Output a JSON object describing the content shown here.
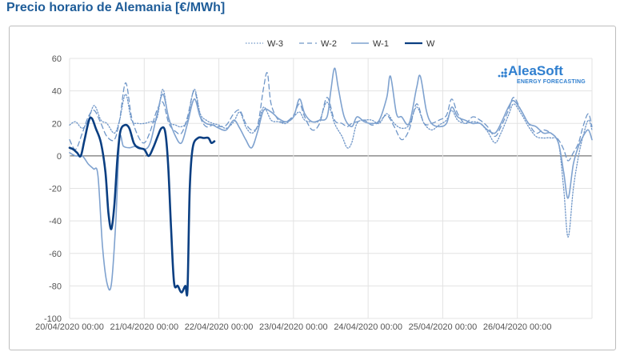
{
  "title": "Precio horario de Alemania [€/MWh]",
  "logo": {
    "brand": "AleaSoft",
    "tagline": "ENERGY FORECASTING",
    "color": "#2f7fcf"
  },
  "chart_data": {
    "type": "line",
    "ylim": [
      -100,
      60
    ],
    "yticks": [
      -100,
      -80,
      -60,
      -40,
      -20,
      0,
      20,
      40,
      60
    ],
    "xlim": [
      0,
      7
    ],
    "xticks": [
      {
        "x": 0,
        "label": "20/04/2020 00:00"
      },
      {
        "x": 1,
        "label": "21/04/2020 00:00"
      },
      {
        "x": 2,
        "label": "22/04/2020 00:00"
      },
      {
        "x": 3,
        "label": "23/04/2020 00:00"
      },
      {
        "x": 4,
        "label": "24/04/2020 00:00"
      },
      {
        "x": 5,
        "label": "25/04/2020 00:00"
      },
      {
        "x": 6,
        "label": "26/04/2020 00:00"
      }
    ],
    "grid": true,
    "legend_position": "top-center",
    "series": [
      {
        "name": "W-3",
        "style": "dotted",
        "color": "#6f96c8",
        "width": 1.3,
        "points": [
          [
            0,
            19
          ],
          [
            0.08,
            21
          ],
          [
            0.17,
            17
          ],
          [
            0.25,
            22
          ],
          [
            0.33,
            31
          ],
          [
            0.42,
            22
          ],
          [
            0.5,
            20
          ],
          [
            0.6,
            14
          ],
          [
            0.67,
            22
          ],
          [
            0.75,
            38
          ],
          [
            0.83,
            22
          ],
          [
            0.92,
            20
          ],
          [
            1.0,
            20
          ],
          [
            1.08,
            21
          ],
          [
            1.17,
            23
          ],
          [
            1.25,
            41
          ],
          [
            1.33,
            22
          ],
          [
            1.42,
            19
          ],
          [
            1.5,
            18
          ],
          [
            1.58,
            22
          ],
          [
            1.67,
            41
          ],
          [
            1.75,
            26
          ],
          [
            1.83,
            22
          ],
          [
            1.92,
            20
          ],
          [
            2.0,
            19
          ],
          [
            2.1,
            17
          ],
          [
            2.2,
            21
          ],
          [
            2.28,
            27
          ],
          [
            2.36,
            18
          ],
          [
            2.44,
            14
          ],
          [
            2.52,
            18
          ],
          [
            2.6,
            30
          ],
          [
            2.7,
            22
          ],
          [
            2.8,
            21
          ],
          [
            2.9,
            20
          ],
          [
            3.0,
            24
          ],
          [
            3.08,
            27
          ],
          [
            3.15,
            22
          ],
          [
            3.25,
            21
          ],
          [
            3.35,
            22
          ],
          [
            3.45,
            33
          ],
          [
            3.55,
            20
          ],
          [
            3.65,
            12
          ],
          [
            3.72,
            5
          ],
          [
            3.78,
            8
          ],
          [
            3.85,
            20
          ],
          [
            3.95,
            22
          ],
          [
            4.05,
            22
          ],
          [
            4.15,
            20
          ],
          [
            4.25,
            26
          ],
          [
            4.35,
            20
          ],
          [
            4.45,
            17
          ],
          [
            4.55,
            19
          ],
          [
            4.65,
            30
          ],
          [
            4.75,
            20
          ],
          [
            4.85,
            16
          ],
          [
            4.95,
            19
          ],
          [
            5.05,
            22
          ],
          [
            5.12,
            28
          ],
          [
            5.2,
            22
          ],
          [
            5.3,
            20
          ],
          [
            5.4,
            21
          ],
          [
            5.5,
            20
          ],
          [
            5.6,
            15
          ],
          [
            5.7,
            8
          ],
          [
            5.78,
            14
          ],
          [
            5.88,
            25
          ],
          [
            5.95,
            32
          ],
          [
            6.05,
            26
          ],
          [
            6.15,
            18
          ],
          [
            6.25,
            12
          ],
          [
            6.35,
            11
          ],
          [
            6.45,
            11
          ],
          [
            6.55,
            8
          ],
          [
            6.62,
            -20
          ],
          [
            6.68,
            -50
          ],
          [
            6.75,
            -20
          ],
          [
            6.82,
            0
          ],
          [
            6.88,
            12
          ],
          [
            6.95,
            22
          ],
          [
            7.0,
            16
          ]
        ]
      },
      {
        "name": "W-2",
        "style": "dashed",
        "color": "#6f96c8",
        "width": 1.3,
        "points": [
          [
            0,
            10
          ],
          [
            0.08,
            4
          ],
          [
            0.17,
            14
          ],
          [
            0.25,
            24
          ],
          [
            0.33,
            28
          ],
          [
            0.42,
            20
          ],
          [
            0.5,
            12
          ],
          [
            0.6,
            10
          ],
          [
            0.67,
            22
          ],
          [
            0.75,
            45
          ],
          [
            0.83,
            24
          ],
          [
            0.92,
            12
          ],
          [
            1.0,
            8
          ],
          [
            1.08,
            15
          ],
          [
            1.17,
            28
          ],
          [
            1.25,
            33
          ],
          [
            1.33,
            20
          ],
          [
            1.42,
            15
          ],
          [
            1.5,
            14
          ],
          [
            1.58,
            24
          ],
          [
            1.67,
            40
          ],
          [
            1.75,
            24
          ],
          [
            1.83,
            18
          ],
          [
            1.92,
            19
          ],
          [
            2.0,
            18
          ],
          [
            2.1,
            19
          ],
          [
            2.2,
            26
          ],
          [
            2.28,
            28
          ],
          [
            2.36,
            20
          ],
          [
            2.44,
            16
          ],
          [
            2.52,
            19
          ],
          [
            2.6,
            42
          ],
          [
            2.65,
            51
          ],
          [
            2.7,
            32
          ],
          [
            2.8,
            22
          ],
          [
            2.9,
            21
          ],
          [
            3.0,
            25
          ],
          [
            3.08,
            32
          ],
          [
            3.15,
            24
          ],
          [
            3.25,
            16
          ],
          [
            3.35,
            20
          ],
          [
            3.45,
            36
          ],
          [
            3.55,
            22
          ],
          [
            3.65,
            20
          ],
          [
            3.72,
            18
          ],
          [
            3.78,
            20
          ],
          [
            3.85,
            21
          ],
          [
            3.95,
            22
          ],
          [
            4.05,
            19
          ],
          [
            4.15,
            21
          ],
          [
            4.25,
            25
          ],
          [
            4.35,
            18
          ],
          [
            4.45,
            10
          ],
          [
            4.55,
            16
          ],
          [
            4.65,
            32
          ],
          [
            4.75,
            20
          ],
          [
            4.85,
            20
          ],
          [
            4.95,
            22
          ],
          [
            5.05,
            25
          ],
          [
            5.12,
            35
          ],
          [
            5.2,
            26
          ],
          [
            5.3,
            20
          ],
          [
            5.4,
            24
          ],
          [
            5.5,
            22
          ],
          [
            5.6,
            18
          ],
          [
            5.7,
            12
          ],
          [
            5.78,
            18
          ],
          [
            5.88,
            28
          ],
          [
            5.95,
            36
          ],
          [
            6.05,
            28
          ],
          [
            6.15,
            20
          ],
          [
            6.25,
            14
          ],
          [
            6.35,
            16
          ],
          [
            6.45,
            14
          ],
          [
            6.55,
            10
          ],
          [
            6.62,
            4
          ],
          [
            6.68,
            -3
          ],
          [
            6.75,
            2
          ],
          [
            6.82,
            8
          ],
          [
            6.88,
            18
          ],
          [
            6.95,
            26
          ],
          [
            7.0,
            18
          ]
        ]
      },
      {
        "name": "W-1",
        "style": "solid",
        "color": "#7fa2cf",
        "width": 1.6,
        "points": [
          [
            0,
            2
          ],
          [
            0.08,
            0
          ],
          [
            0.17,
            0
          ],
          [
            0.25,
            -5
          ],
          [
            0.32,
            -8
          ],
          [
            0.38,
            -12
          ],
          [
            0.44,
            -55
          ],
          [
            0.5,
            -78
          ],
          [
            0.56,
            -79
          ],
          [
            0.62,
            -40
          ],
          [
            0.67,
            10
          ],
          [
            0.72,
            6
          ],
          [
            0.8,
            5
          ],
          [
            0.9,
            6
          ],
          [
            1.0,
            4
          ],
          [
            1.08,
            8
          ],
          [
            1.17,
            25
          ],
          [
            1.25,
            38
          ],
          [
            1.33,
            23
          ],
          [
            1.42,
            12
          ],
          [
            1.5,
            8
          ],
          [
            1.58,
            20
          ],
          [
            1.67,
            35
          ],
          [
            1.75,
            24
          ],
          [
            1.83,
            20
          ],
          [
            1.92,
            19
          ],
          [
            2.0,
            17
          ],
          [
            2.1,
            16
          ],
          [
            2.2,
            22
          ],
          [
            2.28,
            17
          ],
          [
            2.36,
            10
          ],
          [
            2.44,
            5
          ],
          [
            2.52,
            15
          ],
          [
            2.6,
            28
          ],
          [
            2.7,
            27
          ],
          [
            2.8,
            23
          ],
          [
            2.9,
            21
          ],
          [
            3.0,
            24
          ],
          [
            3.08,
            35
          ],
          [
            3.15,
            26
          ],
          [
            3.25,
            21
          ],
          [
            3.35,
            22
          ],
          [
            3.45,
            24
          ],
          [
            3.5,
            40
          ],
          [
            3.55,
            54
          ],
          [
            3.6,
            42
          ],
          [
            3.68,
            24
          ],
          [
            3.78,
            18
          ],
          [
            3.85,
            24
          ],
          [
            3.95,
            21
          ],
          [
            4.05,
            20
          ],
          [
            4.15,
            22
          ],
          [
            4.25,
            36
          ],
          [
            4.3,
            49
          ],
          [
            4.38,
            26
          ],
          [
            4.45,
            24
          ],
          [
            4.55,
            20
          ],
          [
            4.65,
            42
          ],
          [
            4.7,
            49
          ],
          [
            4.78,
            28
          ],
          [
            4.85,
            20
          ],
          [
            4.95,
            18
          ],
          [
            5.05,
            20
          ],
          [
            5.12,
            30
          ],
          [
            5.2,
            24
          ],
          [
            5.3,
            22
          ],
          [
            5.4,
            20
          ],
          [
            5.5,
            20
          ],
          [
            5.6,
            16
          ],
          [
            5.7,
            14
          ],
          [
            5.78,
            20
          ],
          [
            5.88,
            30
          ],
          [
            5.95,
            34
          ],
          [
            6.05,
            28
          ],
          [
            6.15,
            20
          ],
          [
            6.25,
            18
          ],
          [
            6.35,
            14
          ],
          [
            6.45,
            14
          ],
          [
            6.55,
            8
          ],
          [
            6.62,
            -10
          ],
          [
            6.68,
            -26
          ],
          [
            6.75,
            -5
          ],
          [
            6.82,
            6
          ],
          [
            6.88,
            12
          ],
          [
            6.95,
            16
          ],
          [
            7.0,
            10
          ]
        ]
      },
      {
        "name": "W",
        "style": "solid",
        "color": "#0b3f82",
        "width": 2.6,
        "points": [
          [
            0,
            5
          ],
          [
            0.05,
            4
          ],
          [
            0.1,
            2
          ],
          [
            0.15,
            0
          ],
          [
            0.2,
            10
          ],
          [
            0.26,
            22
          ],
          [
            0.3,
            23
          ],
          [
            0.35,
            17
          ],
          [
            0.42,
            8
          ],
          [
            0.48,
            -10
          ],
          [
            0.52,
            -35
          ],
          [
            0.56,
            -45
          ],
          [
            0.6,
            -30
          ],
          [
            0.64,
            -2
          ],
          [
            0.68,
            15
          ],
          [
            0.74,
            19
          ],
          [
            0.8,
            17
          ],
          [
            0.86,
            8
          ],
          [
            0.92,
            5
          ],
          [
            1.0,
            4
          ],
          [
            1.06,
            0
          ],
          [
            1.12,
            5
          ],
          [
            1.18,
            12
          ],
          [
            1.23,
            17
          ],
          [
            1.28,
            15
          ],
          [
            1.32,
            -5
          ],
          [
            1.36,
            -45
          ],
          [
            1.4,
            -78
          ],
          [
            1.45,
            -80
          ],
          [
            1.5,
            -84
          ],
          [
            1.55,
            -80
          ],
          [
            1.58,
            -82
          ],
          [
            1.61,
            -20
          ],
          [
            1.65,
            5
          ],
          [
            1.72,
            11
          ],
          [
            1.8,
            11
          ],
          [
            1.86,
            11
          ],
          [
            1.9,
            8
          ],
          [
            1.94,
            9
          ]
        ]
      }
    ]
  }
}
